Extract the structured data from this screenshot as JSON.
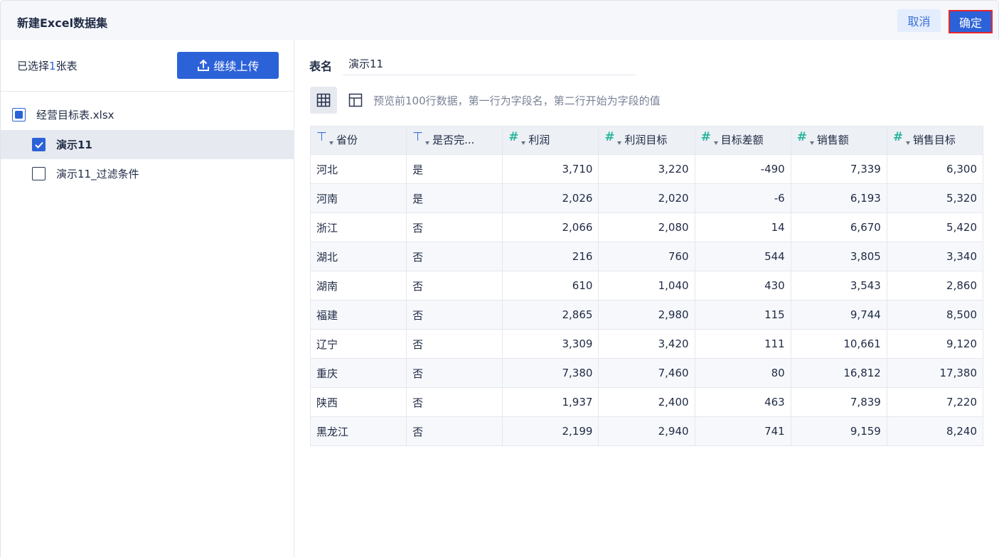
{
  "dialog": {
    "title": "新建Excel数据集",
    "cancel_label": "取消",
    "confirm_label": "确定"
  },
  "sidebar": {
    "selected_prefix": "已选择",
    "selected_count": "1",
    "selected_suffix": "张表",
    "upload_label": "继续上传",
    "file": {
      "name": "经营目标表.xlsx",
      "state": "partial"
    },
    "sheets": [
      {
        "name": "演示11",
        "checked": true
      },
      {
        "name": "演示11_过滤条件",
        "checked": false
      }
    ]
  },
  "main": {
    "table_name_label": "表名",
    "table_name_value": "演示11",
    "preview_hint": "预览前100行数据，第一行为字段名，第二行开始为字段的值",
    "colors": {
      "text_type": "#3b6fd9",
      "number_type": "#2ab5a0",
      "accent": "#2c62d8"
    },
    "columns": [
      {
        "name": "省份",
        "type": "text"
      },
      {
        "name": "是否完...",
        "type": "text"
      },
      {
        "name": "利润",
        "type": "number"
      },
      {
        "name": "利润目标",
        "type": "number"
      },
      {
        "name": "目标差额",
        "type": "number"
      },
      {
        "name": "销售额",
        "type": "number"
      },
      {
        "name": "销售目标",
        "type": "number"
      }
    ],
    "rows": [
      [
        "河北",
        "是",
        "3,710",
        "3,220",
        "-490",
        "7,339",
        "6,300"
      ],
      [
        "河南",
        "是",
        "2,026",
        "2,020",
        "-6",
        "6,193",
        "5,320"
      ],
      [
        "浙江",
        "否",
        "2,066",
        "2,080",
        "14",
        "6,670",
        "5,420"
      ],
      [
        "湖北",
        "否",
        "216",
        "760",
        "544",
        "3,805",
        "3,340"
      ],
      [
        "湖南",
        "否",
        "610",
        "1,040",
        "430",
        "3,543",
        "2,860"
      ],
      [
        "福建",
        "否",
        "2,865",
        "2,980",
        "115",
        "9,744",
        "8,500"
      ],
      [
        "辽宁",
        "否",
        "3,309",
        "3,420",
        "111",
        "10,661",
        "9,120"
      ],
      [
        "重庆",
        "否",
        "7,380",
        "7,460",
        "80",
        "16,812",
        "17,380"
      ],
      [
        "陕西",
        "否",
        "1,937",
        "2,400",
        "463",
        "7,839",
        "7,220"
      ],
      [
        "黑龙江",
        "否",
        "2,199",
        "2,940",
        "741",
        "9,159",
        "8,240"
      ]
    ]
  }
}
